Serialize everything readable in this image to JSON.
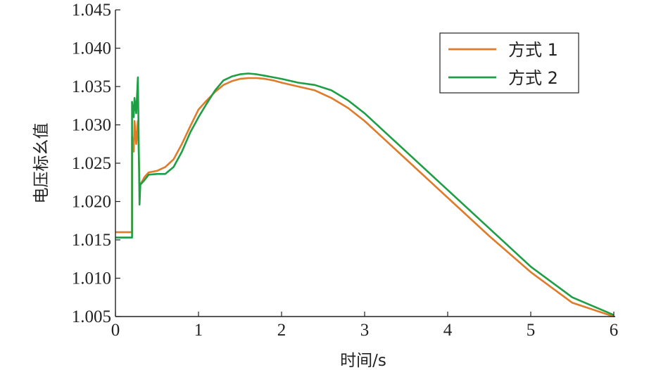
{
  "chart_data": {
    "type": "line",
    "title": "",
    "xlabel": "时间/s",
    "ylabel": "电压标幺值",
    "xlim": [
      0,
      6
    ],
    "ylim": [
      1.005,
      1.045
    ],
    "grid": false,
    "legend_position": "top-right",
    "x_ticks": [
      0,
      1,
      2,
      3,
      4,
      5,
      6
    ],
    "x_tick_labels": [
      "0",
      "1",
      "2",
      "3",
      "4",
      "5",
      "6"
    ],
    "y_ticks": [
      1.005,
      1.01,
      1.015,
      1.02,
      1.025,
      1.03,
      1.035,
      1.04,
      1.045
    ],
    "y_tick_labels": [
      "1.005",
      "1.010",
      "1.015",
      "1.020",
      "1.025",
      "1.030",
      "1.035",
      "1.040",
      "1.045"
    ],
    "series": [
      {
        "name": "方式 1",
        "color": "#E07B2A",
        "x": [
          0,
          0.2,
          0.2,
          0.22,
          0.23,
          0.25,
          0.27,
          0.29,
          0.3,
          0.35,
          0.4,
          0.5,
          0.6,
          0.7,
          0.8,
          0.9,
          1.0,
          1.1,
          1.2,
          1.3,
          1.4,
          1.5,
          1.6,
          1.7,
          1.8,
          1.9,
          2.0,
          2.2,
          2.4,
          2.6,
          2.8,
          3.0,
          3.2,
          3.5,
          4.0,
          4.5,
          5.0,
          5.5,
          6.0
        ],
        "y": [
          1.016,
          1.016,
          1.0285,
          1.0265,
          1.0305,
          1.0275,
          1.0305,
          1.0225,
          1.0222,
          1.0232,
          1.0238,
          1.024,
          1.0245,
          1.0255,
          1.0275,
          1.0298,
          1.032,
          1.0332,
          1.0343,
          1.0352,
          1.0357,
          1.036,
          1.0361,
          1.0361,
          1.036,
          1.0358,
          1.0355,
          1.035,
          1.0345,
          1.0335,
          1.0322,
          1.0305,
          1.0285,
          1.0255,
          1.0205,
          1.0155,
          1.0108,
          1.0068,
          1.005
        ]
      },
      {
        "name": "方式 2",
        "color": "#1E9E45",
        "x": [
          0,
          0.2,
          0.2,
          0.22,
          0.23,
          0.25,
          0.27,
          0.29,
          0.3,
          0.35,
          0.4,
          0.5,
          0.6,
          0.7,
          0.8,
          0.9,
          1.0,
          1.1,
          1.2,
          1.3,
          1.4,
          1.5,
          1.6,
          1.7,
          1.8,
          1.9,
          2.0,
          2.2,
          2.4,
          2.6,
          2.8,
          3.0,
          3.2,
          3.5,
          4.0,
          4.5,
          5.0,
          5.5,
          6.0
        ],
        "y": [
          1.0153,
          1.0153,
          1.033,
          1.031,
          1.0335,
          1.0315,
          1.0362,
          1.0196,
          1.0222,
          1.0228,
          1.0235,
          1.0236,
          1.0236,
          1.0245,
          1.0265,
          1.029,
          1.031,
          1.0328,
          1.0345,
          1.0358,
          1.0363,
          1.0366,
          1.0367,
          1.0366,
          1.0364,
          1.0362,
          1.036,
          1.0355,
          1.0352,
          1.0345,
          1.0332,
          1.0315,
          1.0295,
          1.0265,
          1.0215,
          1.0165,
          1.0115,
          1.0075,
          1.0052
        ]
      }
    ]
  }
}
